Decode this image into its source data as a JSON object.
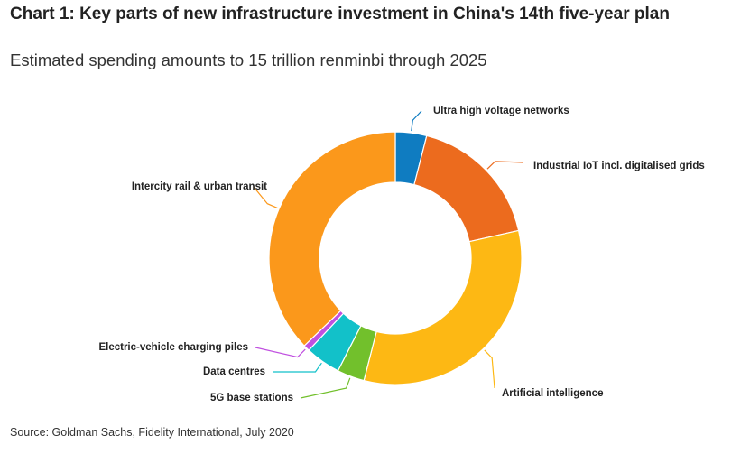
{
  "title": "Chart 1: Key parts of new infrastructure investment in China's 14th five-year plan",
  "subtitle": "Estimated spending amounts to 15 trillion renminbi through 2025",
  "source": "Source: Goldman Sachs, Fidelity International, July 2020",
  "chart_data": {
    "type": "pie",
    "donut": true,
    "legend": "none",
    "unit": "percent",
    "categories": [
      "Ultra high voltage networks",
      "Industrial IoT incl. digitalised grids",
      "Artificial intelligence",
      "5G base stations",
      "Data centres",
      "Electric-vehicle charging piles",
      "Intercity rail & urban transit"
    ],
    "values": [
      4,
      17.5,
      32.5,
      3.5,
      4.5,
      0.8,
      37.2
    ],
    "colors": [
      "#0F7CC1",
      "#EC6B1E",
      "#FDB814",
      "#72C02C",
      "#12C1C9",
      "#C050E0",
      "#FB981B"
    ]
  }
}
